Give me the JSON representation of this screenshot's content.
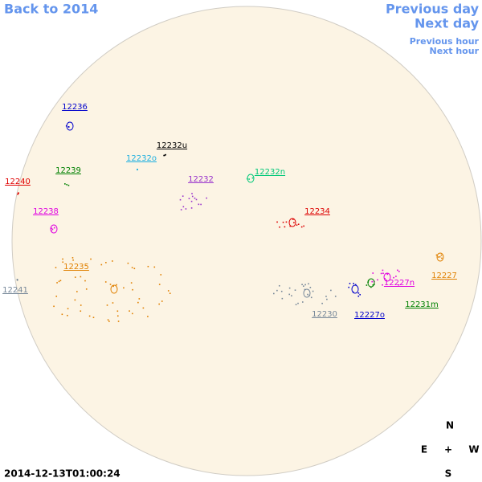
{
  "navigation": {
    "back": "Back to 2014",
    "previous_day": "Previous day",
    "next_day": "Next day",
    "previous_hour": "Previous hour",
    "next_hour": "Next hour"
  },
  "regions": [
    {
      "label": "12236",
      "color": "#0000cc"
    },
    {
      "label": "12232u",
      "color": "#000000"
    },
    {
      "label": "12232o",
      "color": "#1fb0e0"
    },
    {
      "label": "12239",
      "color": "#008000"
    },
    {
      "label": "12232n",
      "color": "#00c878"
    },
    {
      "label": "12240",
      "color": "#e00000"
    },
    {
      "label": "12232",
      "color": "#9933cc"
    },
    {
      "label": "12238",
      "color": "#e000e0"
    },
    {
      "label": "12234",
      "color": "#dd0000"
    },
    {
      "label": "12235",
      "color": "#e08000"
    },
    {
      "label": "12227",
      "color": "#e08000"
    },
    {
      "label": "12241",
      "color": "#778899"
    },
    {
      "label": "12227n",
      "color": "#e000e0"
    },
    {
      "label": "12231m",
      "color": "#008000"
    },
    {
      "label": "12230",
      "color": "#778899"
    },
    {
      "label": "12227o",
      "color": "#0000cc"
    }
  ],
  "compass": {
    "north": "N",
    "east": "E",
    "center": "+",
    "west": "W",
    "south": "S"
  },
  "timestamp": "2014-12-13T01:00:24"
}
